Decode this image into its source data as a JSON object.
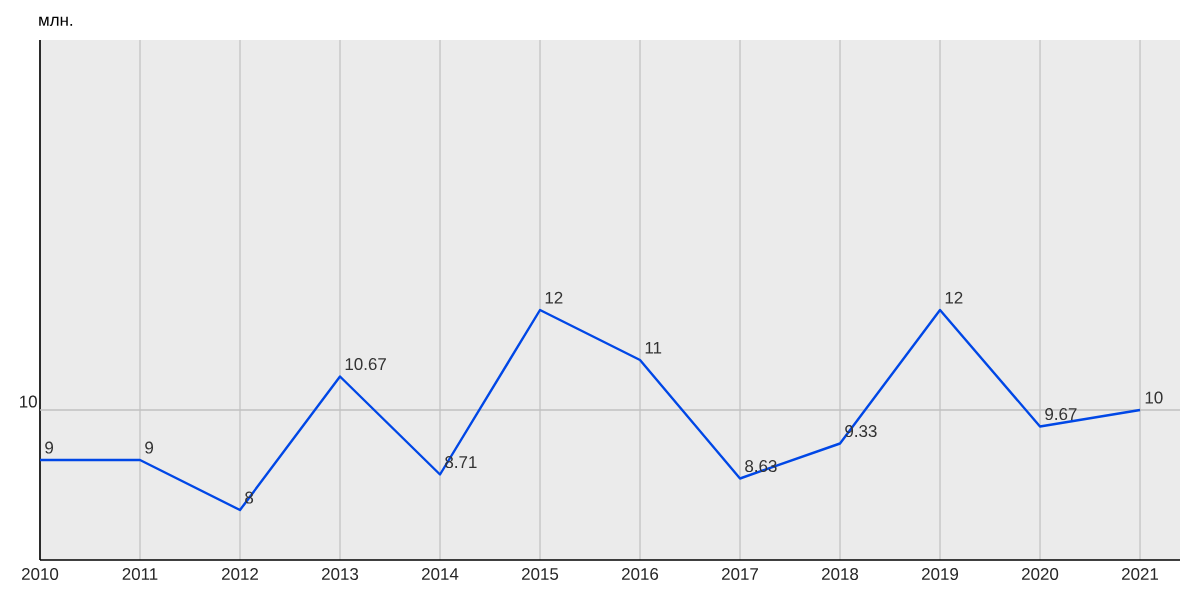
{
  "chart_data": {
    "type": "line",
    "ylabel": "млн.",
    "x": [
      2010,
      2011,
      2012,
      2013,
      2014,
      2015,
      2016,
      2017,
      2018,
      2019,
      2020,
      2021
    ],
    "values": [
      9,
      9,
      8,
      10.67,
      8.71,
      12,
      11,
      8.63,
      9.33,
      12,
      9.67,
      10
    ],
    "color": "#0047e6",
    "xlim": [
      2010,
      2021.4
    ],
    "xticks": [
      2010,
      2011,
      2012,
      2013,
      2014,
      2015,
      2016,
      2017,
      2018,
      2019,
      2020,
      2021
    ],
    "ylim": [
      7,
      17.4
    ],
    "ref_lines": [
      {
        "axis": "y",
        "value": 10,
        "label": "10",
        "color": "#c0c0c0"
      }
    ],
    "grid": "x",
    "marker": "none",
    "line_style": "solid",
    "data_labels": true
  }
}
